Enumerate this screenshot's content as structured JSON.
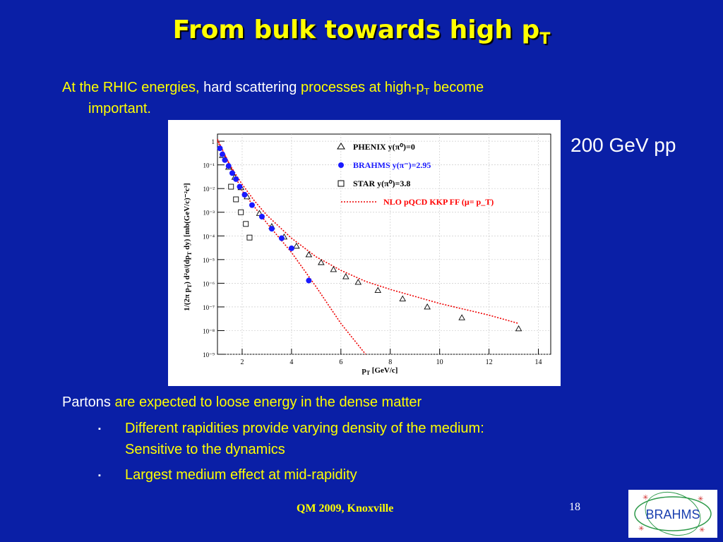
{
  "slide": {
    "title": "From bulk towards high p",
    "title_sub": "T",
    "intro_a": "At the RHIC energies,",
    "intro_b": " hard  scattering ",
    "intro_c": "processes at high-p",
    "intro_sub": "T",
    "intro_d": " become",
    "intro_e": "important.",
    "energy_label": "200 GeV pp",
    "partons_a": "Partons",
    "partons_b": " are expected to loose energy in the dense matter",
    "bullet1_a": "Different rapidities provide varying density of the medium:",
    "bullet1_b": "Sensitive to the dynamics",
    "bullet2": "Largest medium effect  at mid-rapidity",
    "bullet_symbol": "▪",
    "footer_conf": "QM 2009, Knoxville",
    "page_number": "18",
    "logo_text": "BRAHMS"
  },
  "chart_data": {
    "type": "scatter",
    "title": "",
    "xlabel": "p_T [GeV/c]",
    "ylabel": "1/(2π p_T) d²σ/(dp_T dy) [mb(GeV/c)⁻²c³]",
    "xlim": [
      1,
      14.5
    ],
    "ylim": [
      1e-09,
      2
    ],
    "log_y": true,
    "grid": true,
    "legend_position": "top-right",
    "x_ticks": [
      "2",
      "4",
      "6",
      "8",
      "10",
      "12",
      "14"
    ],
    "y_ticks": [
      "1",
      "10⁻¹",
      "10⁻²",
      "10⁻³",
      "10⁻⁴",
      "10⁻⁵",
      "10⁻⁶",
      "10⁻⁷",
      "10⁻⁸",
      "10⁻⁹"
    ],
    "legend": [
      {
        "name": "PHENIX y(π⁰)=0",
        "marker": "triangle",
        "color": "#000000"
      },
      {
        "name": "BRAHMS y(π⁻)=2.95",
        "marker": "dot",
        "color": "#1a1aff"
      },
      {
        "name": "STAR y(π⁰)=3.8",
        "marker": "square",
        "color": "#000000"
      },
      {
        "name": "NLO pQCD KKP FF (μ= p_T)",
        "marker": "dotted-line",
        "color": "#ff0000"
      }
    ],
    "series": [
      {
        "name": "PHENIX y(π⁰)=0",
        "marker": "triangle",
        "x": [
          1.2,
          1.45,
          1.7,
          1.95,
          2.2,
          2.7,
          3.2,
          3.7,
          4.2,
          4.7,
          5.2,
          5.7,
          6.2,
          6.7,
          7.5,
          8.5,
          9.5,
          10.9,
          13.2
        ],
        "y": [
          0.25,
          0.08,
          0.03,
          0.011,
          0.0045,
          0.0009,
          0.00025,
          9e-05,
          3.7e-05,
          1.6e-05,
          7.5e-06,
          3.8e-06,
          1.9e-06,
          1.1e-06,
          5e-07,
          2.2e-07,
          1e-07,
          3.5e-08,
          1.2e-08
        ]
      },
      {
        "name": "BRAHMS y(π⁻)=2.95",
        "marker": "dot",
        "x": [
          1.1,
          1.2,
          1.3,
          1.45,
          1.6,
          1.75,
          1.9,
          2.1,
          2.4,
          2.8,
          3.2,
          3.6,
          4.0,
          4.7
        ],
        "y": [
          0.5,
          0.28,
          0.16,
          0.09,
          0.045,
          0.025,
          0.012,
          0.0055,
          0.002,
          0.00065,
          0.0002,
          8e-05,
          3e-05,
          1.3e-06
        ]
      },
      {
        "name": "STAR y(π⁰)=3.8",
        "marker": "square",
        "x": [
          1.55,
          1.75,
          1.95,
          2.15,
          2.3
        ],
        "y": [
          0.012,
          0.0035,
          0.001,
          0.00032,
          8.5e-05
        ]
      }
    ],
    "curves": [
      {
        "name": "NLO pQCD KKP FF (μ= p_T)",
        "x": [
          1.0,
          1.5,
          2.0,
          2.5,
          3.0,
          4.0,
          5.0,
          6.0,
          7.0,
          8.0,
          10.0,
          12.0,
          13.2
        ],
        "y": [
          1.2,
          0.1,
          0.015,
          0.003,
          0.00075,
          8e-05,
          1.3e-05,
          3.5e-06,
          1.2e-06,
          5.5e-07,
          1.4e-07,
          4.5e-08,
          2e-08
        ]
      },
      {
        "name": "NLO pQCD KKP FF (μ= p_T)",
        "x": [
          1.0,
          1.5,
          2.0,
          3.0,
          4.0,
          5.0,
          6.0,
          7.0
        ],
        "y": [
          1.0,
          0.1,
          0.008,
          0.00035,
          2e-05,
          7e-07,
          2e-08,
          8e-10
        ]
      }
    ]
  }
}
